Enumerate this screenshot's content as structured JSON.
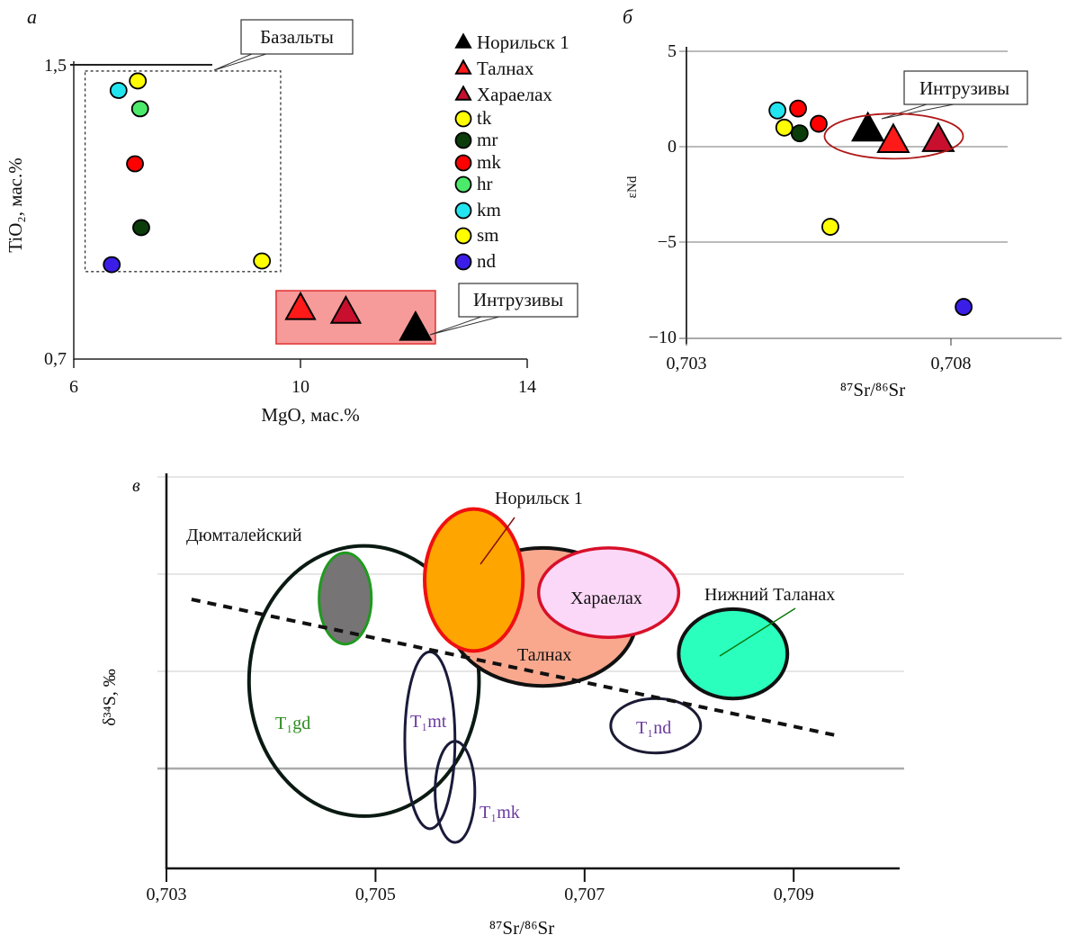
{
  "chart_data": [
    {
      "panel_label": "а",
      "type": "scatter",
      "xlabel": "MgO, мас.%",
      "ylabel": "TiO₂, мас.%",
      "xlim": [
        6,
        14.5
      ],
      "ylim": [
        0.7,
        1.5
      ],
      "xticks": [
        {
          "v": 6,
          "label": "6"
        },
        {
          "v": 10,
          "label": "10"
        },
        {
          "v": 14,
          "label": "14"
        }
      ],
      "yticks": [
        {
          "v": 1.5,
          "label": "1,5"
        },
        {
          "v": 0.7,
          "label": "0,7"
        }
      ],
      "legend": [
        {
          "label": "Норильск 1",
          "marker": "triangle",
          "color": "#000000"
        },
        {
          "label": "Талнах",
          "marker": "triangle",
          "color": "#ff1a1a"
        },
        {
          "label": "Хараелах",
          "marker": "triangle",
          "color": "#c8102e"
        },
        {
          "label": "tk",
          "marker": "circle",
          "color": "#ffff00"
        },
        {
          "label": "mr",
          "marker": "circle",
          "color": "#0b3d0b"
        },
        {
          "label": "mk",
          "marker": "circle",
          "color": "#ff0000"
        },
        {
          "label": "hr",
          "marker": "circle",
          "color": "#4cea6a"
        },
        {
          "label": "km",
          "marker": "circle",
          "color": "#22e5f0"
        },
        {
          "label": "sm",
          "marker": "circle",
          "color": "#ffff00"
        },
        {
          "label": "nd",
          "marker": "circle",
          "color": "#3a1ee8"
        }
      ],
      "points": [
        {
          "series": "km",
          "x": 6.79,
          "y": 1.43
        },
        {
          "series": "tk",
          "x": 7.13,
          "y": 1.456
        },
        {
          "series": "hr",
          "x": 7.17,
          "y": 1.38
        },
        {
          "series": "mk",
          "x": 7.08,
          "y": 1.23
        },
        {
          "series": "mr",
          "x": 7.19,
          "y": 1.056
        },
        {
          "series": "nd",
          "x": 6.67,
          "y": 0.955
        },
        {
          "series": "sm",
          "x": 9.32,
          "y": 0.965
        },
        {
          "series": "Талнах",
          "x": 10.0,
          "y": 0.83
        },
        {
          "series": "Хараелах",
          "x": 10.8,
          "y": 0.82
        },
        {
          "series": "Норильск 1",
          "x": 12.03,
          "y": 0.775
        }
      ],
      "regions": [
        {
          "label": "Базальты",
          "style": "dashed-box",
          "x": [
            6.2,
            9.65
          ],
          "y": [
            0.936,
            1.483
          ]
        },
        {
          "label": "Интрузивы",
          "style": "filled-box",
          "fill": "#f79a9a",
          "x": [
            9.57,
            12.38
          ],
          "y": [
            0.739,
            0.884
          ]
        }
      ]
    },
    {
      "panel_label": "б",
      "type": "scatter",
      "xlabel": "⁸⁷Sr/⁸⁶Sr",
      "ylabel": "εNd",
      "xlim": [
        0.703,
        0.7097
      ],
      "ylim": [
        -10,
        5
      ],
      "xticks": [
        {
          "v": 0.703,
          "label": "0,703"
        },
        {
          "v": 0.708,
          "label": "0,708"
        }
      ],
      "yticks": [
        {
          "v": 5,
          "label": "5"
        },
        {
          "v": 0,
          "label": "0"
        },
        {
          "v": -5,
          "label": "−5"
        },
        {
          "v": -10,
          "label": "−10"
        }
      ],
      "grid": true,
      "points": [
        {
          "series": "km",
          "x": 0.70472,
          "y": 1.9
        },
        {
          "series": "mk",
          "x": 0.70511,
          "y": 2.0
        },
        {
          "series": "mk",
          "x": 0.7055,
          "y": 1.2
        },
        {
          "series": "tk",
          "x": 0.70485,
          "y": 1.0
        },
        {
          "series": "mr",
          "x": 0.70514,
          "y": 0.7
        },
        {
          "series": "sm",
          "x": 0.70572,
          "y": -4.2
        },
        {
          "series": "nd",
          "x": 0.70824,
          "y": -8.4
        },
        {
          "series": "Норильск 1",
          "x": 0.70643,
          "y": 0.8
        },
        {
          "series": "Талнах",
          "x": 0.70691,
          "y": 0.2
        },
        {
          "series": "Хараелах",
          "x": 0.70776,
          "y": 0.25
        }
      ],
      "regions": [
        {
          "label": "Интрузивы",
          "style": "ellipse",
          "cx": 0.70692,
          "cy": 0.55,
          "rx": 0.00131,
          "ry": 1.18
        }
      ]
    },
    {
      "panel_label": "в",
      "type": "scatter",
      "xlabel": "⁸⁷Sr/⁸⁶Sr",
      "ylabel": "δ³⁴S, ‰",
      "xlim": [
        0.703,
        0.71
      ],
      "ylim": [
        0,
        4
      ],
      "y_units_note_hidden": true,
      "xticks": [
        {
          "v": 0.703,
          "label": "0,703"
        },
        {
          "v": 0.705,
          "label": "0,705"
        },
        {
          "v": 0.707,
          "label": "0,707"
        },
        {
          "v": 0.709,
          "label": "0,709"
        }
      ],
      "gridlines_y": [
        1,
        2,
        3,
        4
      ],
      "fields": [
        {
          "name": "Дюмталейский",
          "cx": 0.70489,
          "cy": 1.9,
          "rx": 0.0011,
          "ry": 1.39,
          "fill": "none",
          "stroke": "#0a1a12",
          "labelText": "T₁gd",
          "labelColor": "#2a8a1a"
        },
        {
          "name": "Талнах",
          "cx": 0.7066,
          "cy": 2.56,
          "rx": 0.0009,
          "ry": 0.71,
          "fill": "#f9a88e",
          "stroke": "#111111"
        },
        {
          "name": "T1gd-core",
          "cx": 0.70471,
          "cy": 2.75,
          "rx": 0.00025,
          "ry": 0.47,
          "fill": "#767474",
          "stroke": "#1f9a1f"
        },
        {
          "name": "Норильск 1",
          "cx": 0.70594,
          "cy": 2.94,
          "rx": 0.00047,
          "ry": 0.73,
          "fill": "#ffa500",
          "stroke": "#f01010"
        },
        {
          "name": "Хараелах",
          "cx": 0.70723,
          "cy": 2.81,
          "rx": 0.00067,
          "ry": 0.46,
          "fill": "#fcd8f8",
          "stroke": "#d8102a"
        },
        {
          "name": "Нижний Таланах",
          "cx": 0.70842,
          "cy": 2.18,
          "rx": 0.00052,
          "ry": 0.46,
          "fill": "#2affbe",
          "stroke": "#111111"
        },
        {
          "name": "T1nd",
          "cx": 0.70768,
          "cy": 1.44,
          "rx": 0.00043,
          "ry": 0.28,
          "fill": "none",
          "stroke": "#1a1a33"
        },
        {
          "name": "T1mt",
          "cx": 0.70552,
          "cy": 1.29,
          "rx": 0.00024,
          "ry": 0.91,
          "fill": "none",
          "stroke": "#1a1a3a"
        },
        {
          "name": "T1mk",
          "cx": 0.70576,
          "cy": 0.76,
          "rx": 0.00019,
          "ry": 0.52,
          "fill": "none",
          "stroke": "#1a1a3a"
        }
      ],
      "trend_line": {
        "style": "dashed",
        "from": [
          0.70324,
          2.74
        ],
        "to": [
          0.70941,
          1.34
        ]
      },
      "labels": {
        "dyumtaleysky": "Дюмталейский",
        "norilsk": "Норильск 1",
        "talnakh": "Талнах",
        "kharaelakh": "Хараелах",
        "nizhny_talanakh": "Нижний Таланах",
        "t1gd": "T₁gd",
        "t1mt": "T₁mt",
        "t1mk": "T₁mk",
        "t1nd": "T₁nd"
      }
    }
  ],
  "callouts": {
    "basalts": "Базальты",
    "intrusions_a": "Интрузивы",
    "intrusions_b": "Интрузивы"
  }
}
